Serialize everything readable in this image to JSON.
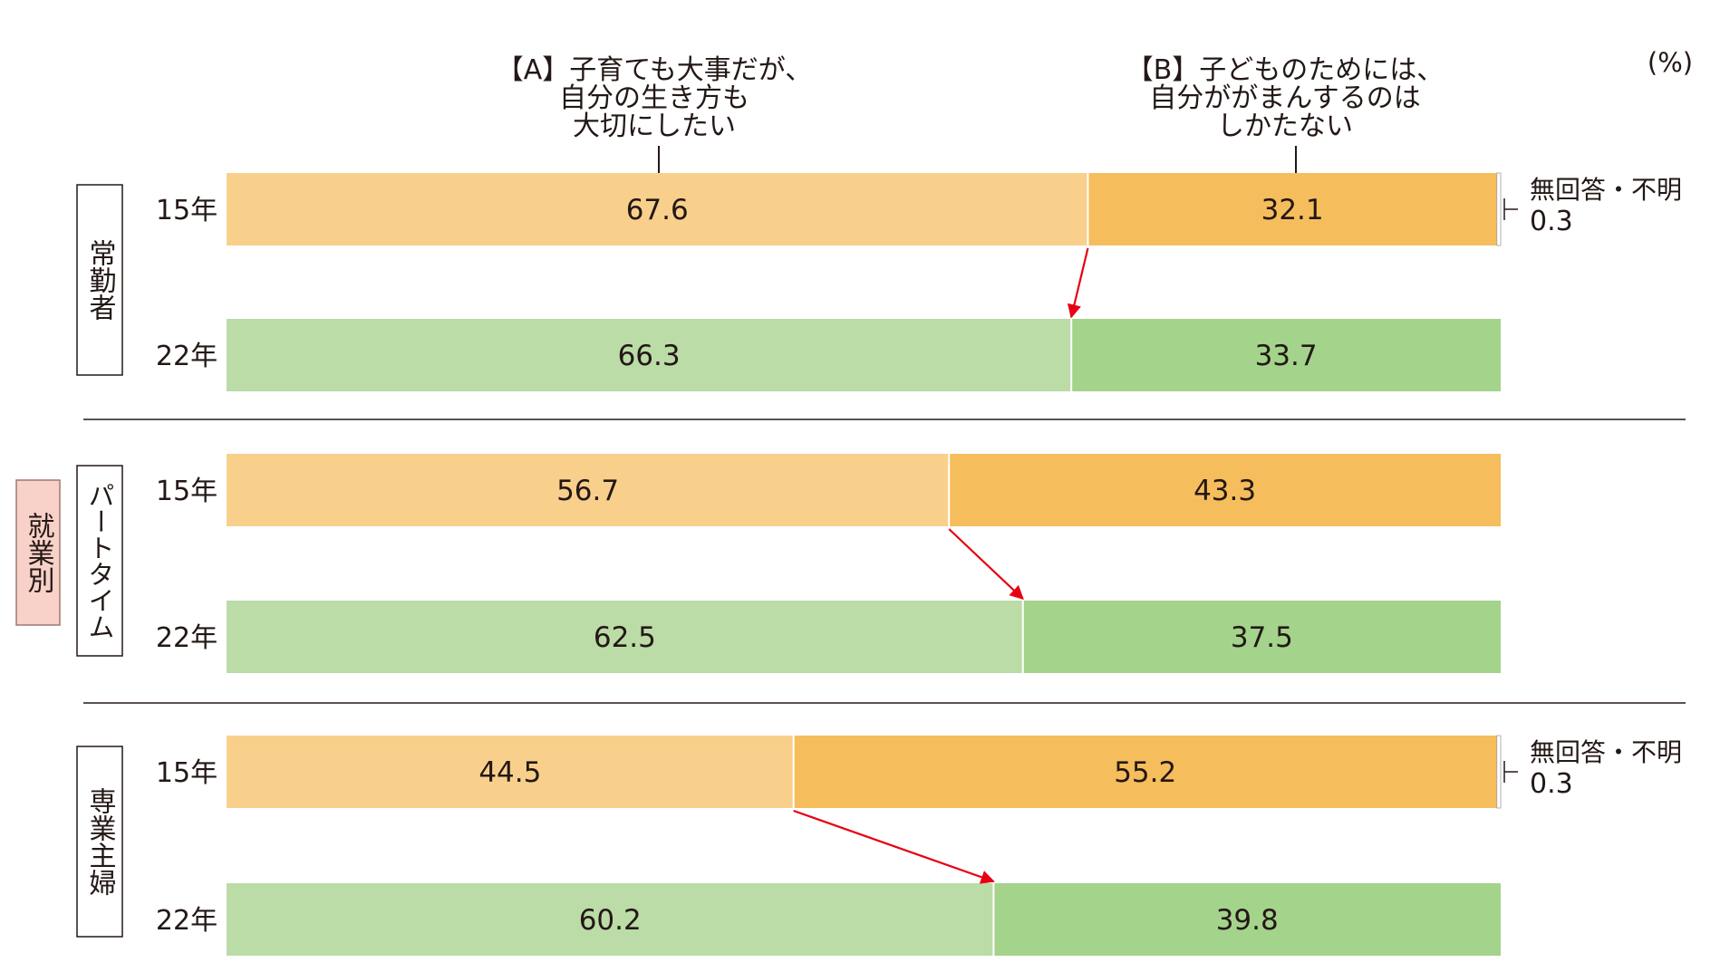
{
  "chart_data": {
    "type": "bar",
    "orientation": "horizontal",
    "stacked": true,
    "unit_label": "(%)",
    "xlim": [
      0,
      100
    ],
    "grid": false,
    "legend": "column headers above bars",
    "group_label": "就業別",
    "series": [
      {
        "key": "A",
        "name_lines": [
          "【A】子育ても大事だが、",
          "自分の生き方も",
          "大切にしたい"
        ]
      },
      {
        "key": "B",
        "name_lines": [
          "【B】子どものためには、",
          "自分ががまんするのは",
          "しかたない"
        ]
      }
    ],
    "unanswered_label": "無回答・不明",
    "groups": [
      {
        "name": "常勤者",
        "rows": [
          {
            "year": "15年",
            "A": 67.6,
            "B": 32.1,
            "na": 0.3,
            "na_label": "0.3"
          },
          {
            "year": "22年",
            "A": 66.3,
            "B": 33.7,
            "na": null,
            "na_label": ""
          }
        ]
      },
      {
        "name": "パートタイム",
        "rows": [
          {
            "year": "15年",
            "A": 56.7,
            "B": 43.3,
            "na": null,
            "na_label": ""
          },
          {
            "year": "22年",
            "A": 62.5,
            "B": 37.5,
            "na": null,
            "na_label": ""
          }
        ]
      },
      {
        "name": "専業主婦",
        "rows": [
          {
            "year": "15年",
            "A": 44.5,
            "B": 55.2,
            "na": 0.3,
            "na_label": "0.3"
          },
          {
            "year": "22年",
            "A": 60.2,
            "B": 39.8,
            "na": null,
            "na_label": ""
          }
        ]
      }
    ],
    "colors": {
      "A_15": "#f8d08c",
      "B_15": "#f6bd5c",
      "A_22": "#bbdba7",
      "B_22": "#a4d38c",
      "arrow": "#e60012",
      "text": "#231815",
      "group_label_bg": "#f8d1c8",
      "group_label_border": "#9a7b70"
    }
  }
}
